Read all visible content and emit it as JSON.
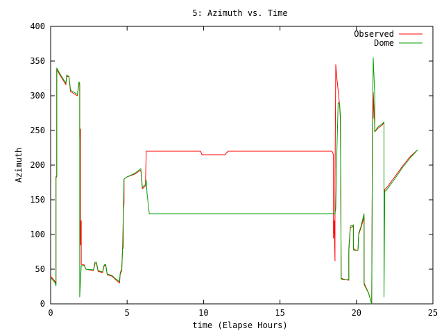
{
  "chart_data": {
    "type": "line",
    "title": "5: Azimuth vs. Time",
    "xlabel": "time (Elapse Hours)",
    "ylabel": "Azimuth",
    "xlim": [
      0,
      25
    ],
    "ylim": [
      0,
      400
    ],
    "xticks": [
      0,
      5,
      10,
      15,
      20,
      25
    ],
    "yticks": [
      0,
      50,
      100,
      150,
      200,
      250,
      300,
      350,
      400
    ],
    "grid": false,
    "legend_position": "top-right",
    "series": [
      {
        "name": "Observed",
        "color": "#ff0000",
        "points": [
          [
            0.0,
            40
          ],
          [
            0.3,
            32
          ],
          [
            0.35,
            28
          ],
          [
            0.35,
            183
          ],
          [
            0.4,
            185
          ],
          [
            0.4,
            338
          ],
          [
            0.6,
            330
          ],
          [
            1.0,
            316
          ],
          [
            1.05,
            328
          ],
          [
            1.2,
            327
          ],
          [
            1.3,
            306
          ],
          [
            1.75,
            300
          ],
          [
            1.85,
            318
          ],
          [
            1.9,
            316
          ],
          [
            1.9,
            240
          ],
          [
            1.95,
            252
          ],
          [
            1.95,
            85
          ],
          [
            2.0,
            120
          ],
          [
            2.0,
            57
          ],
          [
            2.2,
            56
          ],
          [
            2.3,
            50
          ],
          [
            2.8,
            48
          ],
          [
            2.9,
            58
          ],
          [
            3.0,
            58
          ],
          [
            3.1,
            47
          ],
          [
            3.4,
            45
          ],
          [
            3.5,
            55
          ],
          [
            3.6,
            56
          ],
          [
            3.7,
            42
          ],
          [
            4.0,
            40
          ],
          [
            4.2,
            36
          ],
          [
            4.5,
            30
          ],
          [
            4.55,
            43
          ],
          [
            4.65,
            48
          ],
          [
            4.7,
            80
          ],
          [
            4.75,
            80
          ],
          [
            4.75,
            130
          ],
          [
            4.8,
            145
          ],
          [
            4.8,
            180
          ],
          [
            5.0,
            183
          ],
          [
            5.5,
            187
          ],
          [
            5.9,
            193
          ],
          [
            6.0,
            166
          ],
          [
            6.2,
            170
          ],
          [
            6.25,
            220
          ],
          [
            9.8,
            220
          ],
          [
            9.9,
            215
          ],
          [
            11.4,
            215
          ],
          [
            11.6,
            220
          ],
          [
            18.4,
            220
          ],
          [
            18.5,
            215
          ],
          [
            18.5,
            95
          ],
          [
            18.55,
            120
          ],
          [
            18.6,
            62
          ],
          [
            18.6,
            180
          ],
          [
            18.65,
            345
          ],
          [
            18.7,
            330
          ],
          [
            18.8,
            308
          ],
          [
            18.9,
            285
          ],
          [
            18.95,
            265
          ],
          [
            19.0,
            37
          ],
          [
            19.1,
            36
          ],
          [
            19.5,
            34
          ],
          [
            19.5,
            75
          ],
          [
            19.6,
            110
          ],
          [
            19.8,
            112
          ],
          [
            19.8,
            80
          ],
          [
            19.9,
            78
          ],
          [
            20.1,
            77
          ],
          [
            20.15,
            100
          ],
          [
            20.3,
            110
          ],
          [
            20.5,
            125
          ],
          [
            20.5,
            30
          ],
          [
            20.8,
            15
          ],
          [
            21.0,
            0
          ],
          [
            21.05,
            265
          ],
          [
            21.1,
            268
          ],
          [
            21.1,
            305
          ],
          [
            21.2,
            255
          ],
          [
            21.2,
            248
          ],
          [
            21.4,
            253
          ],
          [
            21.7,
            258
          ],
          [
            21.8,
            262
          ],
          [
            21.8,
            80
          ],
          [
            21.85,
            165
          ],
          [
            22.0,
            168
          ],
          [
            22.5,
            183
          ],
          [
            23.0,
            198
          ],
          [
            23.5,
            212
          ],
          [
            24.0,
            222
          ]
        ]
      },
      {
        "name": "Dome",
        "color": "#00a000",
        "points": [
          [
            0.0,
            38
          ],
          [
            0.3,
            30
          ],
          [
            0.35,
            26
          ],
          [
            0.35,
            182
          ],
          [
            0.4,
            183
          ],
          [
            0.4,
            340
          ],
          [
            0.6,
            332
          ],
          [
            1.0,
            318
          ],
          [
            1.05,
            330
          ],
          [
            1.2,
            328
          ],
          [
            1.3,
            308
          ],
          [
            1.75,
            302
          ],
          [
            1.85,
            320
          ],
          [
            1.9,
            318
          ],
          [
            1.9,
            10
          ],
          [
            2.0,
            55
          ],
          [
            2.2,
            55
          ],
          [
            2.3,
            50
          ],
          [
            2.8,
            49
          ],
          [
            2.9,
            60
          ],
          [
            3.0,
            60
          ],
          [
            3.1,
            48
          ],
          [
            3.4,
            46
          ],
          [
            3.5,
            56
          ],
          [
            3.6,
            57
          ],
          [
            3.7,
            43
          ],
          [
            4.0,
            41
          ],
          [
            4.2,
            37
          ],
          [
            4.5,
            32
          ],
          [
            4.55,
            45
          ],
          [
            4.65,
            50
          ],
          [
            4.7,
            78
          ],
          [
            4.8,
            180
          ],
          [
            5.0,
            183
          ],
          [
            5.5,
            188
          ],
          [
            5.9,
            195
          ],
          [
            6.0,
            168
          ],
          [
            6.2,
            172
          ],
          [
            6.25,
            178
          ],
          [
            6.3,
            160
          ],
          [
            6.45,
            130
          ],
          [
            18.6,
            130
          ],
          [
            18.65,
            138
          ],
          [
            18.7,
            200
          ],
          [
            18.8,
            290
          ],
          [
            18.9,
            288
          ],
          [
            18.95,
            270
          ],
          [
            19.0,
            36
          ],
          [
            19.1,
            35
          ],
          [
            19.5,
            35
          ],
          [
            19.5,
            80
          ],
          [
            19.6,
            112
          ],
          [
            19.8,
            114
          ],
          [
            19.8,
            78
          ],
          [
            19.9,
            77
          ],
          [
            20.1,
            77
          ],
          [
            20.15,
            102
          ],
          [
            20.3,
            112
          ],
          [
            20.5,
            130
          ],
          [
            20.5,
            28
          ],
          [
            20.8,
            15
          ],
          [
            21.0,
            0
          ],
          [
            21.05,
            250
          ],
          [
            21.1,
            355
          ],
          [
            21.2,
            300
          ],
          [
            21.2,
            248
          ],
          [
            21.4,
            255
          ],
          [
            21.7,
            260
          ],
          [
            21.8,
            262
          ],
          [
            21.8,
            10
          ],
          [
            21.85,
            162
          ],
          [
            22.0,
            165
          ],
          [
            22.5,
            180
          ],
          [
            23.0,
            196
          ],
          [
            23.5,
            210
          ],
          [
            24.0,
            222
          ]
        ]
      }
    ]
  }
}
